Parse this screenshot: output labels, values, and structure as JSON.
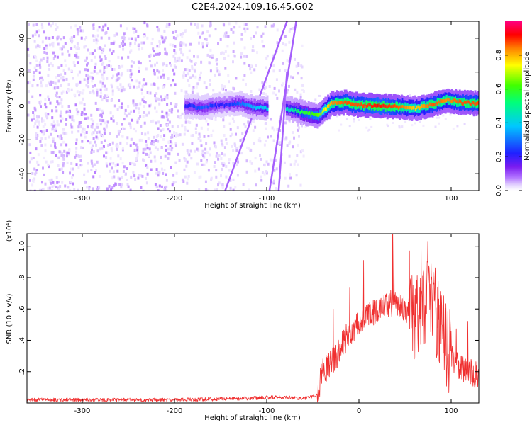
{
  "title": "C2E4.2024.109.16.45.G02",
  "chart_data": [
    {
      "type": "heatmap",
      "xlabel": "Height of straight line (km)",
      "ylabel": "Frequency (Hz)",
      "xlim": [
        -360,
        130
      ],
      "ylim": [
        -50,
        50
      ],
      "xticks": [
        -300,
        -200,
        -100,
        0,
        100
      ],
      "yticks": [
        -40,
        -20,
        0,
        20,
        40
      ],
      "colorbar": {
        "label": "Normalized spectral amplitude",
        "range": [
          0.0,
          1.0
        ],
        "ticks": [
          0.0,
          0.2,
          0.4,
          0.6,
          0.8
        ],
        "colormap": [
          "#ffffff",
          "#e6d8ff",
          "#b070ff",
          "#7a1cf0",
          "#2020ff",
          "#00c8ff",
          "#00ff7a",
          "#40ff00",
          "#ffff00",
          "#ff8000",
          "#ff0000",
          "#ff0080"
        ]
      },
      "ridge": [
        {
          "x": -190,
          "y": 0.0,
          "amp": 0.35
        },
        {
          "x": -170,
          "y": -1.0,
          "amp": 0.4
        },
        {
          "x": -150,
          "y": 0.5,
          "amp": 0.35
        },
        {
          "x": -130,
          "y": 1.5,
          "amp": 0.4
        },
        {
          "x": -115,
          "y": -1.0,
          "amp": 0.45
        },
        {
          "x": -75,
          "y": -2.0,
          "amp": 0.5
        },
        {
          "x": -60,
          "y": -4.0,
          "amp": 0.6
        },
        {
          "x": -45,
          "y": -6.0,
          "amp": 0.65
        },
        {
          "x": -30,
          "y": 1.5,
          "amp": 0.8
        },
        {
          "x": -15,
          "y": 2.0,
          "amp": 0.85
        },
        {
          "x": 0,
          "y": 0.5,
          "amp": 0.85
        },
        {
          "x": 20,
          "y": 0.0,
          "amp": 0.9
        },
        {
          "x": 40,
          "y": -0.5,
          "amp": 0.85
        },
        {
          "x": 60,
          "y": -1.5,
          "amp": 0.75
        },
        {
          "x": 80,
          "y": 1.0,
          "amp": 0.85
        },
        {
          "x": 95,
          "y": 3.5,
          "amp": 0.8
        },
        {
          "x": 110,
          "y": 2.0,
          "amp": 0.85
        },
        {
          "x": 128,
          "y": 1.5,
          "amp": 0.85
        }
      ]
    },
    {
      "type": "line",
      "xlabel": "Height of straight line (km)",
      "ylabel": "SNR (10 * v/v)",
      "scale_note": "(x10⁴)",
      "xlim": [
        -360,
        130
      ],
      "ylim": [
        0,
        1.08
      ],
      "xticks": [
        -300,
        -200,
        -100,
        0,
        100
      ],
      "yticks": [
        0.2,
        0.4,
        0.6,
        0.8,
        1.0
      ],
      "color": "#f03030",
      "series": [
        {
          "x": [
            -360,
            -300,
            -200,
            -150,
            -120,
            -100,
            -80,
            -60,
            -45,
            -40,
            -30,
            -20,
            -10,
            0,
            10,
            20,
            30,
            40,
            50,
            60,
            70,
            80,
            90,
            100,
            110,
            120,
            130
          ],
          "y": [
            0.02,
            0.02,
            0.02,
            0.025,
            0.03,
            0.035,
            0.035,
            0.03,
            0.05,
            0.2,
            0.25,
            0.35,
            0.45,
            0.5,
            0.55,
            0.6,
            0.63,
            0.65,
            0.6,
            0.55,
            0.6,
            0.65,
            0.45,
            0.3,
            0.22,
            0.2,
            0.17
          ]
        }
      ]
    }
  ]
}
